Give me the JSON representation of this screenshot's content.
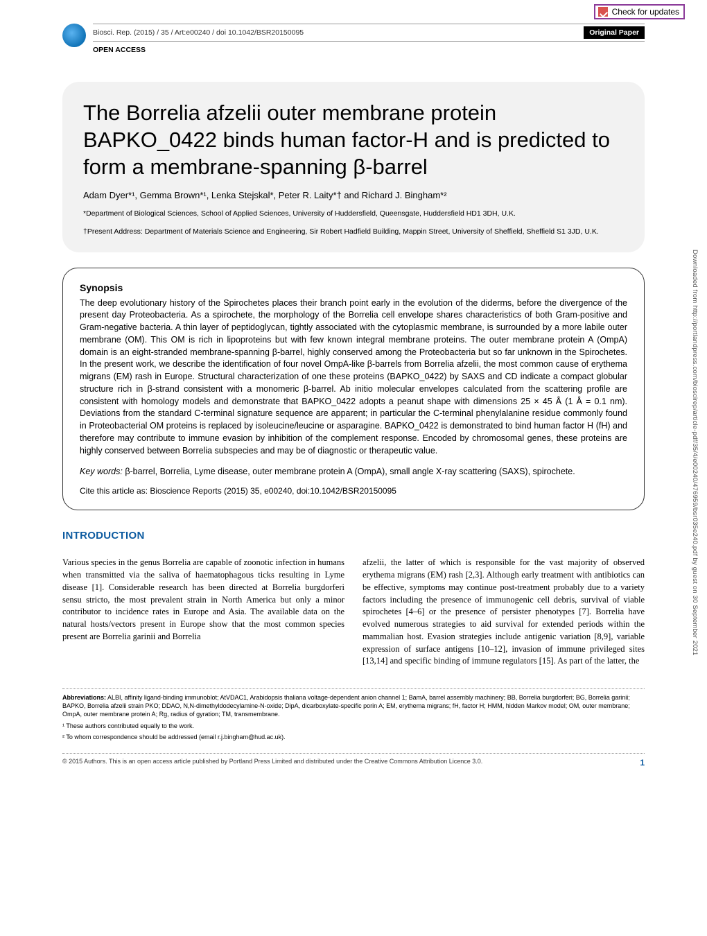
{
  "check_updates": "Check for updates",
  "header": {
    "citation": "Biosci. Rep. (2015) / 35 / Art:e00240 / doi 10.1042/BSR20150095",
    "badge": "Original Paper",
    "open_access": "OPEN ACCESS"
  },
  "title": "The Borrelia afzelii outer membrane protein BAPKO_0422 binds human factor-H and is predicted to form a membrane-spanning β-barrel",
  "authors": "Adam Dyer*¹, Gemma Brown*¹, Lenka Stejskal*, Peter R. Laity*† and Richard J. Bingham*²",
  "affil1": "*Department of Biological Sciences, School of Applied Sciences, University of Huddersfield, Queensgate, Huddersfield HD1 3DH, U.K.",
  "affil2": "†Present Address: Department of Materials Science and Engineering, Sir Robert Hadfield Building, Mappin Street, University of Sheffield, Sheffield S1 3JD, U.K.",
  "synopsis": {
    "heading": "Synopsis",
    "body": "The deep evolutionary history of the Spirochetes places their branch point early in the evolution of the diderms, before the divergence of the present day Proteobacteria. As a spirochete, the morphology of the Borrelia cell envelope shares characteristics of both Gram-positive and Gram-negative bacteria. A thin layer of peptidoglycan, tightly associated with the cytoplasmic membrane, is surrounded by a more labile outer membrane (OM). This OM is rich in lipoproteins but with few known integral membrane proteins. The outer membrane protein A (OmpA) domain is an eight-stranded membrane-spanning β-barrel, highly conserved among the Proteobacteria but so far unknown in the Spirochetes. In the present work, we describe the identification of four novel OmpA-like β-barrels from Borrelia afzelii, the most common cause of erythema migrans (EM) rash in Europe. Structural characterization of one these proteins (BAPKO_0422) by SAXS and CD indicate a compact globular structure rich in β-strand consistent with a monomeric β-barrel. Ab initio molecular envelopes calculated from the scattering profile are consistent with homology models and demonstrate that BAPKO_0422 adopts a peanut shape with dimensions 25 × 45 Å (1 Å = 0.1 nm). Deviations from the standard C-terminal signature sequence are apparent; in particular the C-terminal phenylalanine residue commonly found in Proteobacterial OM proteins is replaced by isoleucine/leucine or asparagine. BAPKO_0422 is demonstrated to bind human factor H (fH) and therefore may contribute to immune evasion by inhibition of the complement response. Encoded by chromosomal genes, these proteins are highly conserved between Borrelia subspecies and may be of diagnostic or therapeutic value.",
    "keywords_label": "Key words:",
    "keywords": " β-barrel, Borrelia, Lyme disease, outer membrane protein A (OmpA), small angle X-ray scattering (SAXS), spirochete.",
    "cite_as": "Cite this article as: Bioscience Reports (2015) 35, e00240, doi:10.1042/BSR20150095"
  },
  "intro": {
    "heading": "INTRODUCTION",
    "col1": "Various species in the genus Borrelia are capable of zoonotic infection in humans when transmitted via the saliva of haematophagous ticks resulting in Lyme disease [1]. Considerable research has been directed at Borrelia burgdorferi sensu stricto, the most prevalent strain in North America but only a minor contributor to incidence rates in Europe and Asia. The available data on the natural hosts/vectors present in Europe show that the most common species present are Borrelia garinii and Borrelia",
    "col2": "afzelii, the latter of which is responsible for the vast majority of observed erythema migrans (EM) rash [2,3]. Although early treatment with antibiotics can be effective, symptoms may continue post-treatment probably due to a variety factors including the presence of immunogenic cell debris, survival of viable spirochetes [4–6] or the presence of persister phenotypes [7]. Borrelia have evolved numerous strategies to aid survival for extended periods within the mammalian host. Evasion strategies include antigenic variation [8,9], variable expression of surface antigens [10–12], invasion of immune privileged sites [13,14] and specific binding of immune regulators [15]. As part of the latter, the"
  },
  "abbrev": {
    "label": "Abbreviations:",
    "text": " ALBI, affinity ligand-binding immunoblot; AtVDAC1, Arabidopsis thaliana voltage-dependent anion channel 1; BamA, barrel assembly machinery; BB, Borrelia burgdorferi; BG, Borrelia garinii; BAPKO, Borrelia afzelii strain PKO; DDAO, N,N-dimethyldodecylamine-N-oxide; DipA, dicarboxylate-specific porin A; EM, erythema migrans; fH, factor H; HMM, hidden Markov model; OM, outer membrane; OmpA, outer membrane protein A; Rg, radius of gyration; TM, transmembrane."
  },
  "fn1": "¹ These authors contributed equally to the work.",
  "fn2": "² To whom correspondence should be addressed (email r.j.bingham@hud.ac.uk).",
  "footer": {
    "copyright": "© 2015 Authors.  This is an open access article published by Portland Press Limited and distributed under the Creative Commons Attribution Licence 3.0.",
    "page": "1"
  },
  "side": "Downloaded from http://portlandpress.com/bioscirep/article-pdf/35/4/e00240/476959/bsr035e240.pdf by guest on 30 September 2021"
}
